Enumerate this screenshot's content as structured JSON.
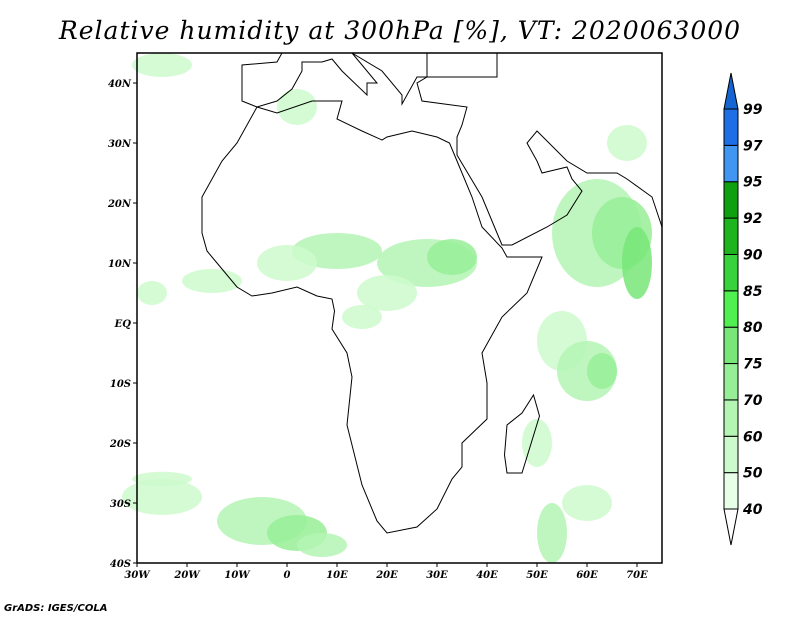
{
  "title": "Relative humidity at 300hPa [%], VT: 2020063000",
  "credit": "GrADS: IGES/COLA",
  "map": {
    "lon_range": [
      -30,
      75
    ],
    "lat_range": [
      -40,
      45
    ],
    "x_ticks": [
      "30W",
      "20W",
      "10W",
      "0",
      "10E",
      "20E",
      "30E",
      "40E",
      "50E",
      "60E",
      "70E"
    ],
    "y_ticks": [
      "40S",
      "30S",
      "20S",
      "10S",
      "EQ",
      "10N",
      "20N",
      "30N",
      "40N"
    ]
  },
  "colorbar": {
    "levels": [
      "40",
      "50",
      "60",
      "70",
      "75",
      "80",
      "85",
      "90",
      "92",
      "95",
      "97",
      "99"
    ],
    "colors": [
      "#e6ffe6",
      "#ccfacc",
      "#b4f5b4",
      "#96ee96",
      "#78e678",
      "#50f050",
      "#37d23c",
      "#1eb41e",
      "#0fa00f",
      "#4096f0",
      "#1e6ee6",
      "#1464d2"
    ]
  }
}
